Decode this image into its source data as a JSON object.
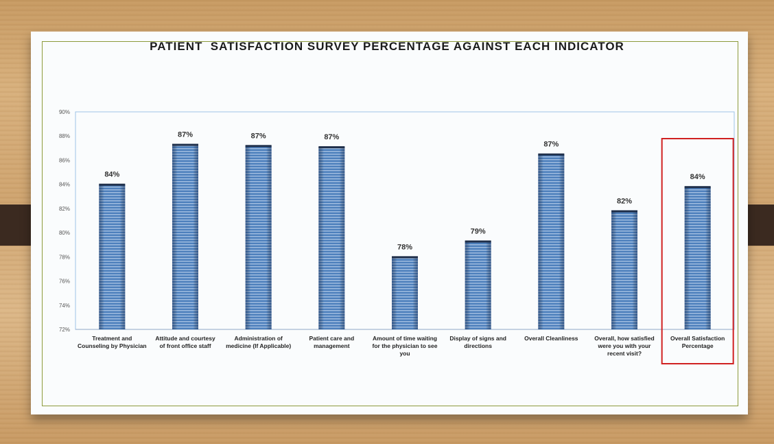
{
  "chart_data": {
    "type": "bar",
    "title": "PATIENT  SATISFACTION SURVEY PERCENTAGE AGAINST EACH INDICATOR",
    "categories": [
      [
        "Treatment and",
        "Counseling by Physician"
      ],
      [
        "Attitude and courtesy",
        "of front office staff"
      ],
      [
        "Administration of",
        "medicine (If Applicable)"
      ],
      [
        "Patient care and",
        "management"
      ],
      [
        "Amount of time waiting",
        "for the physician to see",
        "you"
      ],
      [
        "Display of signs and",
        "directions"
      ],
      [
        "Overall Cleanliness"
      ],
      [
        "Overall, how satisfied",
        "were you with your",
        "recent visit?"
      ],
      [
        "Overall  Satisfaction",
        "Percentage"
      ]
    ],
    "values": [
      84.0,
      87.3,
      87.2,
      87.1,
      78.0,
      79.3,
      86.5,
      81.8,
      83.8
    ],
    "data_labels": [
      "84%",
      "87%",
      "87%",
      "87%",
      "78%",
      "79%",
      "87%",
      "82%",
      "84%"
    ],
    "ylim": [
      72,
      90
    ],
    "yticks": [
      "72%",
      "74%",
      "76%",
      "78%",
      "80%",
      "82%",
      "84%",
      "86%",
      "88%",
      "90%"
    ],
    "grid": false,
    "highlighted_category_index": 8,
    "colors": {
      "bar": "#4f81bd",
      "bar_stripe": "#a9c3e4",
      "bar_cap": "#1f2f4a",
      "highlight_box": "#d02020",
      "frame": "#8c9a3a",
      "plot_border": "#9dc3e6"
    }
  }
}
